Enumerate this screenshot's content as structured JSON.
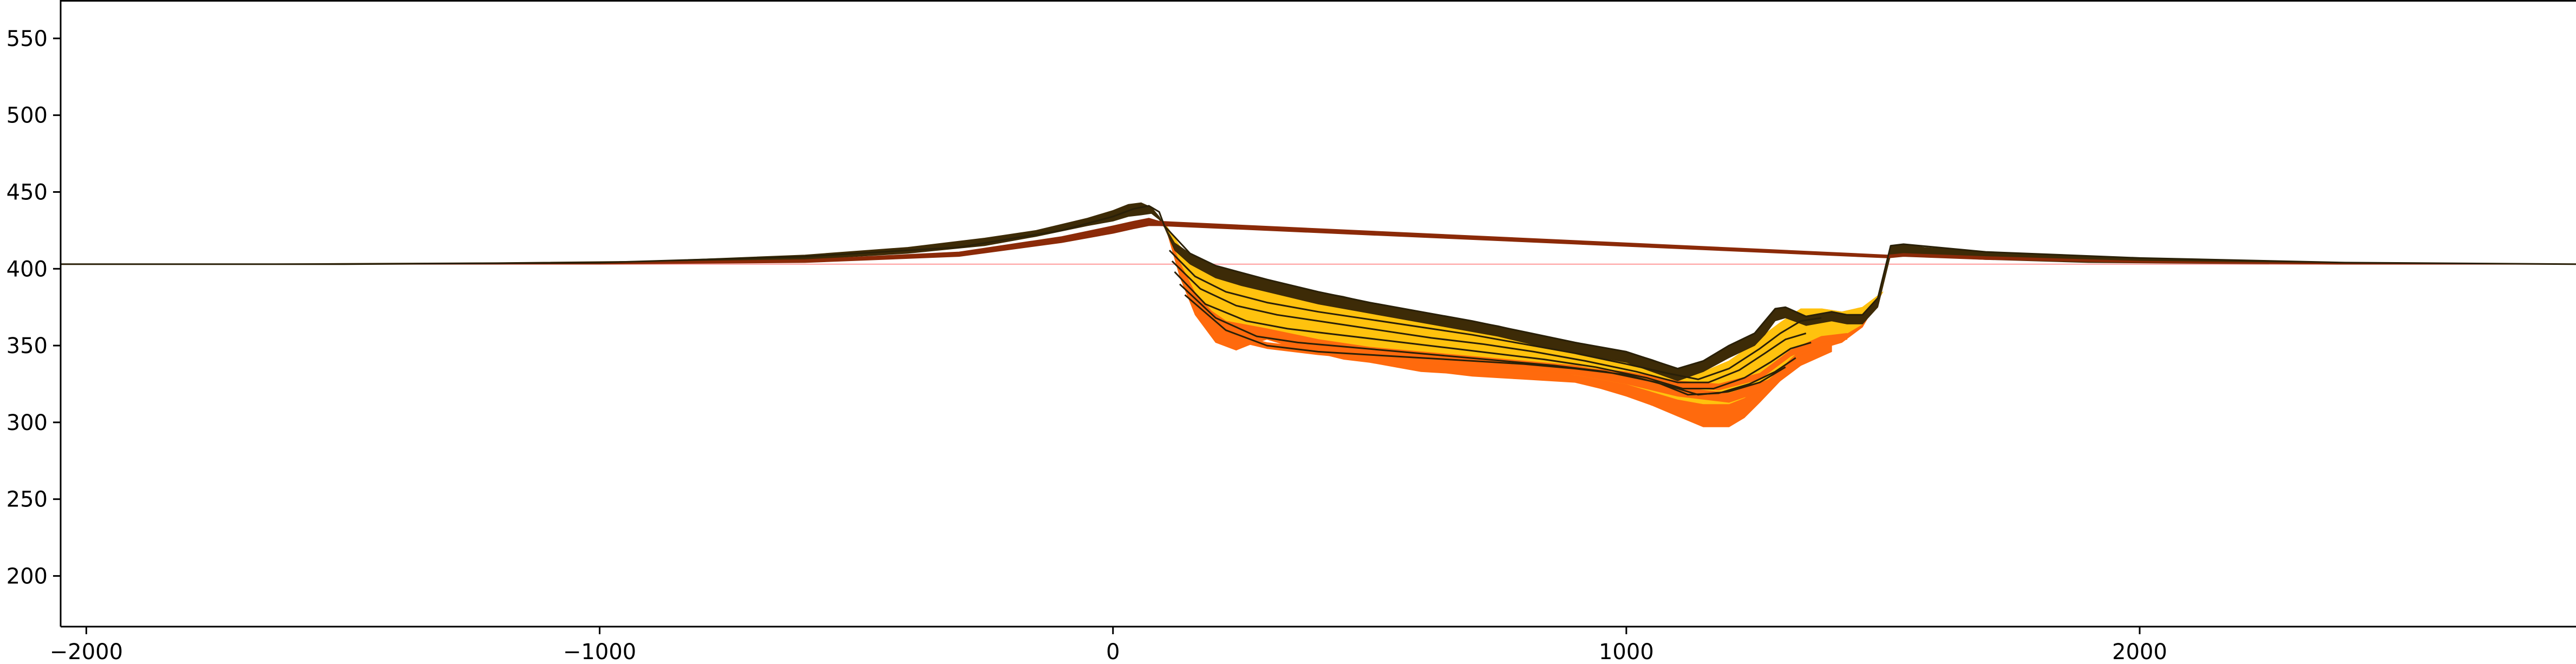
{
  "chart_data": {
    "type": "area",
    "title": "",
    "xlabel": "",
    "ylabel": "",
    "xlim": [
      -2050,
      2850
    ],
    "ylim": [
      167,
      575
    ],
    "x_ticks": [
      -2000,
      -1000,
      0,
      1000,
      2000
    ],
    "x_tick_labels": [
      "−2000",
      "−1000",
      "0",
      "1000",
      "2000"
    ],
    "y_ticks": [
      200,
      250,
      300,
      350,
      400,
      450,
      500,
      550
    ],
    "y_tick_labels": [
      "200",
      "250",
      "300",
      "350",
      "400",
      "450",
      "500",
      "550"
    ],
    "grid": false,
    "legend": "none",
    "base_level": 403,
    "colors": {
      "crust": "#3d2b07",
      "crust_lower": "#8b2a08",
      "deep_orange": "#ff6a0d",
      "gold": "#ffc20e",
      "line": "#2a2008",
      "base_line": "#ff9a9a"
    },
    "bands": [
      {
        "color": "#ff6a0d",
        "x": [
          100,
          130,
          160,
          200,
          240,
          270,
          300,
          350,
          400,
          450,
          500,
          550,
          600,
          650,
          700,
          750,
          800,
          850,
          900,
          950,
          1000,
          1050,
          1100,
          1150,
          1200,
          1230,
          1260,
          1300,
          1340,
          1380,
          1420,
          1460,
          1500
        ],
        "top": [
          430,
          415,
          405,
          398,
          393,
          390,
          387,
          383,
          379,
          375,
          372,
          369,
          366,
          363,
          360,
          357,
          354,
          350,
          347,
          344,
          341,
          335,
          330,
          333,
          340,
          347,
          355,
          365,
          374,
          374,
          372,
          375,
          385
        ],
        "bottom": [
          430,
          395,
          370,
          352,
          347,
          351,
          354,
          349,
          345,
          341,
          339,
          336,
          333,
          332,
          330,
          329,
          328,
          327,
          326,
          322,
          317,
          311,
          304,
          297,
          297,
          303,
          313,
          327,
          342,
          348,
          352,
          362,
          385
        ]
      },
      {
        "color": "#ffc20e",
        "x": [
          100,
          130,
          160,
          200,
          240,
          270,
          300,
          350,
          400,
          450,
          500,
          550,
          600,
          650,
          700,
          750,
          800,
          850,
          900,
          950,
          1000,
          1050,
          1100,
          1150,
          1200,
          1230,
          1260,
          1300,
          1340,
          1380,
          1420,
          1460,
          1500
        ],
        "top": [
          430,
          415,
          405,
          398,
          393,
          390,
          387,
          383,
          379,
          375,
          372,
          369,
          366,
          363,
          360,
          357,
          354,
          350,
          347,
          344,
          341,
          335,
          330,
          333,
          340,
          347,
          355,
          365,
          374,
          374,
          372,
          375,
          385
        ],
        "bottom": [
          430,
          405,
          385,
          370,
          362,
          360,
          361,
          357,
          353,
          349,
          346,
          343,
          341,
          339,
          338,
          337,
          335,
          333,
          331,
          328,
          325,
          320,
          315,
          312,
          312,
          316,
          323,
          335,
          348,
          353,
          356,
          364,
          385
        ]
      },
      {
        "color": "#ff6a0d",
        "x": [
          160,
          220,
          300,
          400,
          500,
          600,
          700,
          800,
          900,
          1000,
          1100,
          1200,
          1280,
          1340,
          1400
        ],
        "top": [
          380,
          366,
          361,
          354,
          349,
          346,
          343,
          340,
          337,
          331,
          323,
          319,
          328,
          344,
          352
        ],
        "bottom": [
          373,
          360,
          354,
          348,
          343,
          340,
          337,
          334,
          331,
          325,
          317,
          313,
          322,
          337,
          346
        ]
      },
      {
        "color": "#ff6a0d",
        "x": [
          200,
          300,
          400,
          500,
          600,
          700,
          800,
          900,
          1000,
          1100,
          1180,
          1260,
          1320,
          1380,
          1430
        ],
        "top": [
          360,
          352,
          348,
          345,
          342,
          340,
          338,
          336,
          333,
          327,
          325,
          332,
          347,
          356,
          358
        ],
        "bottom": [
          356,
          348,
          344,
          341,
          338,
          336,
          334,
          332,
          329,
          323,
          321,
          328,
          343,
          352,
          354
        ]
      },
      {
        "color": "#3d2b07",
        "x": [
          -2050,
          -1800,
          -1500,
          -1200,
          -900,
          -600,
          -400,
          -250,
          -150,
          -50,
          0,
          30,
          55,
          75,
          90,
          100,
          120,
          150,
          200,
          250,
          300,
          350,
          400,
          450,
          500,
          550,
          600,
          650,
          700,
          750,
          800,
          850,
          900,
          950,
          1000,
          1050,
          1100,
          1150,
          1200,
          1250,
          1270,
          1290,
          1310,
          1350,
          1400,
          1430,
          1460,
          1490,
          1515,
          1540,
          1580,
          1700,
          1900,
          2100,
          2400,
          2850
        ],
        "top": [
          403,
          403,
          403.5,
          404,
          405,
          409,
          414,
          420,
          425,
          433,
          438,
          442,
          443,
          440,
          434,
          428,
          417,
          410,
          402,
          397,
          393,
          389,
          385,
          382,
          378,
          375,
          372,
          369,
          366,
          363,
          359,
          355,
          352,
          349,
          346,
          341,
          335,
          340,
          350,
          358,
          365,
          374,
          375,
          369,
          372,
          370,
          370,
          381,
          415,
          416,
          414,
          411,
          408,
          406,
          404,
          403
        ],
        "bottom": [
          403,
          403,
          403,
          403,
          404,
          406,
          410,
          415,
          421,
          428,
          431,
          434,
          435,
          436,
          432,
          427,
          412,
          403,
          394,
          389,
          385,
          381,
          377,
          374,
          371,
          368,
          365,
          362,
          359,
          356,
          352,
          348,
          345,
          342,
          339,
          333,
          327,
          333,
          342,
          350,
          357,
          366,
          368,
          363,
          366,
          364,
          364,
          375,
          409,
          410,
          408,
          406,
          404,
          403.5,
          403,
          403
        ]
      },
      {
        "color": "#8b2a08",
        "x": [
          -2050,
          -1500,
          -1000,
          -600,
          -300,
          -100,
          0,
          40,
          70,
          90,
          1510,
          1540,
          1700,
          2000,
          2400,
          2850
        ],
        "top": [
          403,
          403,
          404,
          406,
          411,
          421,
          428,
          431,
          433,
          431,
          409,
          410,
          408,
          405,
          403.5,
          403
        ],
        "bottom": [
          403,
          403,
          403,
          404,
          408,
          417,
          423,
          426,
          428,
          428,
          407,
          408,
          406,
          404,
          403,
          403
        ]
      }
    ],
    "layer_lines": [
      {
        "x": [
          110,
          160,
          220,
          300,
          400,
          500,
          600,
          700,
          800,
          900,
          1000,
          1080,
          1140,
          1200,
          1260,
          1300,
          1340,
          1380
        ],
        "y": [
          412,
          395,
          385,
          378,
          372,
          367,
          362,
          357,
          351,
          345,
          338,
          332,
          328,
          335,
          348,
          358,
          366,
          368
        ]
      },
      {
        "x": [
          115,
          170,
          240,
          320,
          420,
          520,
          620,
          720,
          820,
          920,
          1020,
          1100,
          1160,
          1220,
          1270,
          1310,
          1350
        ],
        "y": [
          405,
          387,
          376,
          370,
          365,
          360,
          355,
          351,
          346,
          340,
          333,
          326,
          326,
          334,
          345,
          354,
          358
        ]
      },
      {
        "x": [
          120,
          180,
          260,
          340,
          440,
          540,
          640,
          740,
          840,
          940,
          1040,
          1110,
          1170,
          1230,
          1280,
          1320,
          1360
        ],
        "y": [
          398,
          377,
          366,
          361,
          357,
          353,
          349,
          345,
          341,
          336,
          329,
          322,
          322,
          329,
          339,
          348,
          352
        ]
      },
      {
        "x": [
          130,
          200,
          280,
          360,
          460,
          560,
          660,
          760,
          860,
          960,
          1060,
          1120,
          1180,
          1240,
          1290,
          1330
        ],
        "y": [
          390,
          368,
          356,
          352,
          349,
          346,
          343,
          340,
          337,
          333,
          326,
          318,
          319,
          325,
          333,
          342
        ]
      },
      {
        "x": [
          140,
          220,
          300,
          400,
          500,
          600,
          700,
          800,
          900,
          1000,
          1080,
          1140,
          1200,
          1260,
          1310
        ],
        "y": [
          383,
          360,
          350,
          346,
          344,
          342,
          340,
          338,
          335,
          331,
          324,
          318,
          320,
          326,
          336
        ]
      }
    ],
    "outlines": [
      {
        "x": [
          -2050,
          -1500,
          -1000,
          -600,
          -300,
          -100,
          0,
          40,
          70,
          90,
          100,
          150,
          200,
          300,
          400,
          500,
          600,
          700,
          800,
          900,
          1000,
          1100,
          1150,
          1200,
          1250,
          1290,
          1310,
          1350,
          1400,
          1430,
          1460,
          1490,
          1515,
          1540,
          1700,
          2000,
          2400,
          2850
        ],
        "y": [
          403,
          403,
          404,
          408,
          414,
          425,
          434,
          439,
          441,
          437,
          428,
          410,
          402,
          393,
          385,
          378,
          372,
          366,
          359,
          352,
          346,
          335,
          340,
          350,
          358,
          374,
          375,
          369,
          372,
          370,
          370,
          381,
          415,
          416,
          411,
          407,
          404,
          403
        ]
      }
    ]
  }
}
